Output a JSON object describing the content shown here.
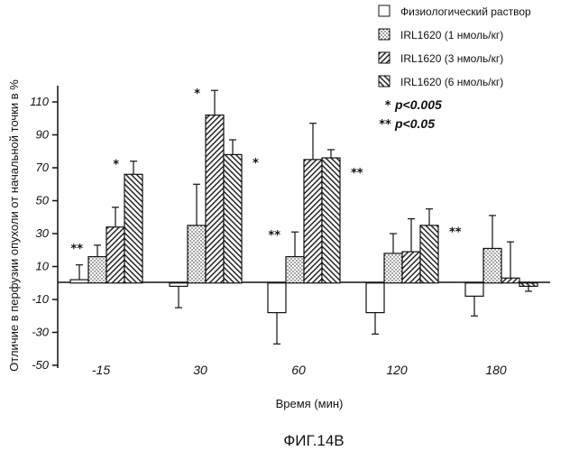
{
  "caption": "ФИГ.14В",
  "chart_data": {
    "type": "bar",
    "xlabel": "Время (мин)",
    "ylabel": "Отличие в перфузии опухоли от начальной точки в %",
    "ylim": [
      -50,
      110
    ],
    "yticks": [
      110,
      90,
      70,
      50,
      30,
      10,
      -10,
      -30,
      -50
    ],
    "categories": [
      "-15",
      "30",
      "60",
      "120",
      "180"
    ],
    "series": [
      {
        "name": "Физиологический раствор",
        "pattern": "blank",
        "values": [
          2,
          -2,
          -18,
          -18,
          -8
        ],
        "errors": [
          9,
          13,
          19,
          13,
          12
        ]
      },
      {
        "name": "IRL1620 (1 нмоль/кг)",
        "pattern": "dots",
        "values": [
          16,
          35,
          16,
          18,
          21
        ],
        "errors": [
          7,
          25,
          15,
          12,
          20
        ]
      },
      {
        "name": "IRL1620 (3 нмоль/кг)",
        "pattern": "fwd-hatch",
        "values": [
          34,
          102,
          75,
          19,
          3
        ],
        "errors": [
          12,
          15,
          22,
          20,
          22
        ]
      },
      {
        "name": "IRL1620 (6 нмоль/кг)",
        "pattern": "back-hatch",
        "values": [
          66,
          78,
          76,
          35,
          -2
        ],
        "errors": [
          8,
          9,
          5,
          10,
          3
        ]
      }
    ],
    "significance": [
      {
        "category": "-15",
        "series": 1,
        "mark": "**"
      },
      {
        "category": "-15",
        "series": 3,
        "mark": "*"
      },
      {
        "category": "30",
        "series": 2,
        "mark": "*"
      },
      {
        "category": "30",
        "series": 3,
        "mark": "*"
      },
      {
        "category": "60",
        "series": 1,
        "mark": "**"
      },
      {
        "category": "60",
        "series": 3,
        "mark": "**"
      },
      {
        "category": "120",
        "series": 3,
        "mark": "**"
      }
    ],
    "legend": {
      "placement": "top-right",
      "significance_items": [
        {
          "mark": "*",
          "text": "p<0.005"
        },
        {
          "mark": "**",
          "text": "p<0.05"
        }
      ]
    },
    "grid": false
  }
}
